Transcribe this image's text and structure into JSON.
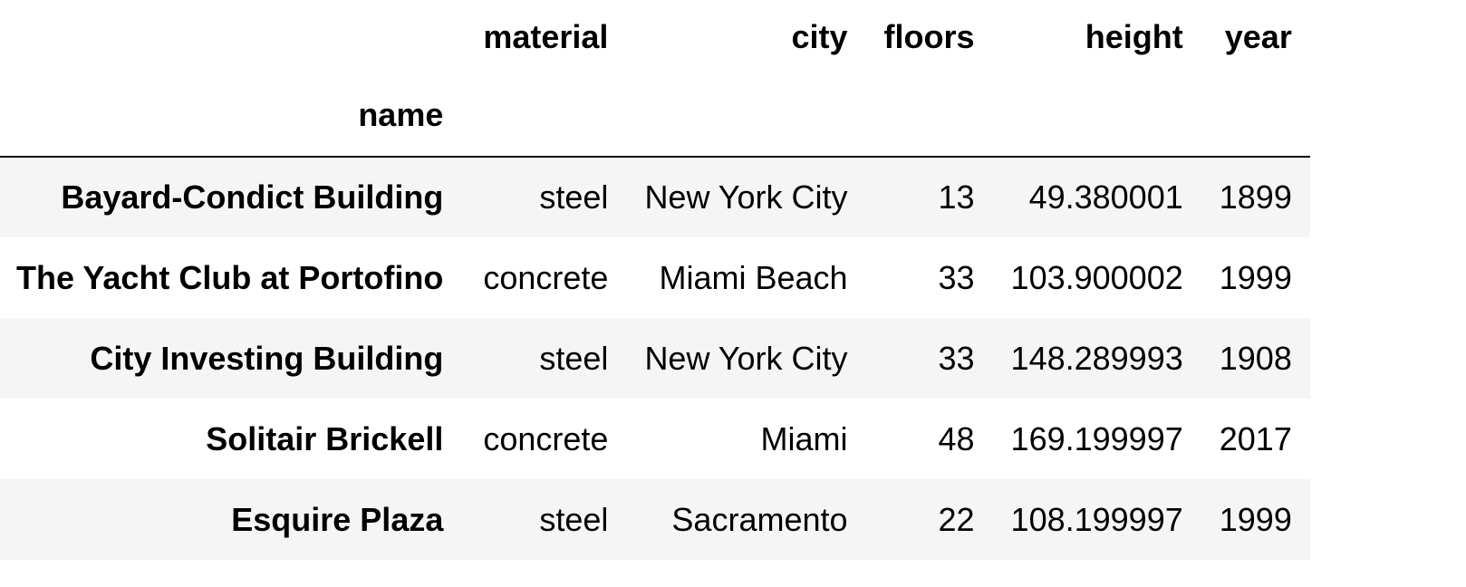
{
  "table": {
    "columns": [
      "material",
      "city",
      "floors",
      "height",
      "year"
    ],
    "index_name": "name",
    "rows": [
      {
        "name": "Bayard-Condict Building",
        "material": "steel",
        "city": "New York City",
        "floors": "13",
        "height": "49.380001",
        "year": "1899"
      },
      {
        "name": "The Yacht Club at Portofino",
        "material": "concrete",
        "city": "Miami Beach",
        "floors": "33",
        "height": "103.900002",
        "year": "1999"
      },
      {
        "name": "City Investing Building",
        "material": "steel",
        "city": "New York City",
        "floors": "33",
        "height": "148.289993",
        "year": "1908"
      },
      {
        "name": "Solitair Brickell",
        "material": "concrete",
        "city": "Miami",
        "floors": "48",
        "height": "169.199997",
        "year": "2017"
      },
      {
        "name": "Esquire Plaza",
        "material": "steel",
        "city": "Sacramento",
        "floors": "22",
        "height": "108.199997",
        "year": "1999"
      }
    ]
  },
  "colors": {
    "stripe": "#f5f5f5",
    "background": "#ffffff",
    "rule": "#000000"
  }
}
